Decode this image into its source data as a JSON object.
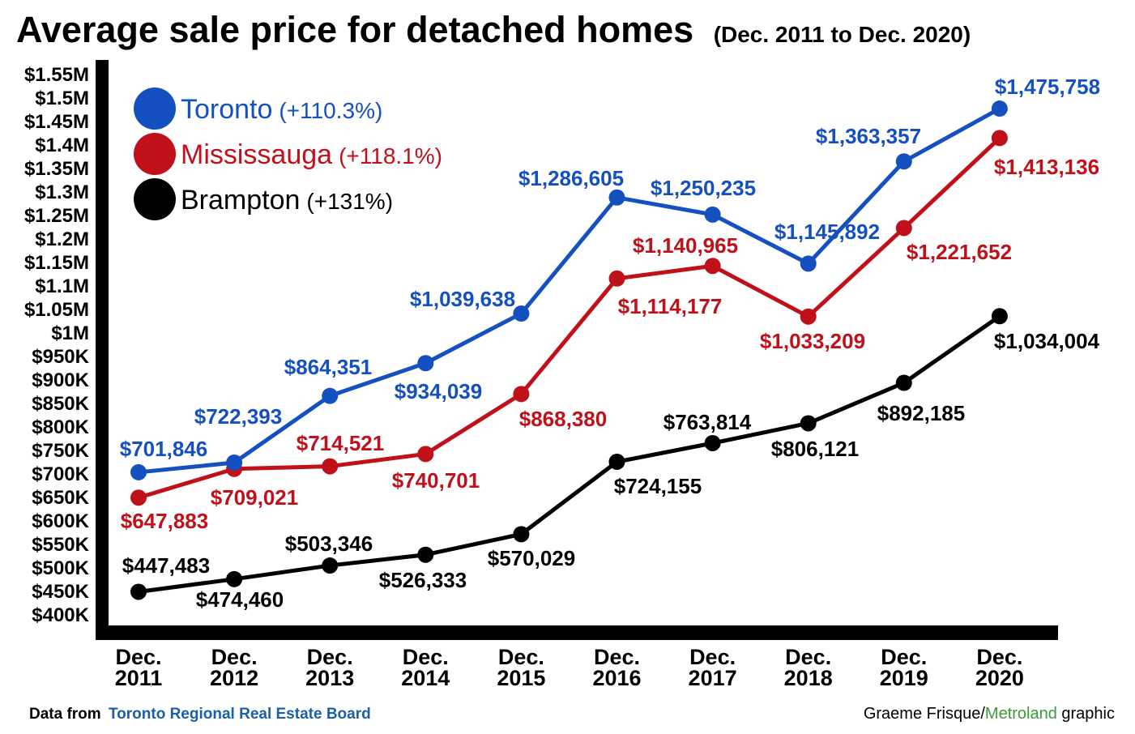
{
  "chart_data": {
    "type": "line",
    "title": "Average sale price for detached homes",
    "subtitle": "(Dec. 2011 to Dec. 2020)",
    "x_labels": [
      [
        "Dec.",
        "2011"
      ],
      [
        "Dec.",
        "2012"
      ],
      [
        "Dec.",
        "2013"
      ],
      [
        "Dec.",
        "2014"
      ],
      [
        "Dec.",
        "2015"
      ],
      [
        "Dec.",
        "2016"
      ],
      [
        "Dec.",
        "2017"
      ],
      [
        "Dec.",
        "2018"
      ],
      [
        "Dec.",
        "2019"
      ],
      [
        "Dec.",
        "2020"
      ]
    ],
    "y_ticks": [
      "$400K",
      "$450K",
      "$500K",
      "$550K",
      "$600K",
      "$650K",
      "$700K",
      "$750K",
      "$800K",
      "$850K",
      "$900K",
      "$950K",
      "$1M",
      "$1.05M",
      "$1.1M",
      "$1.15M",
      "$1.2M",
      "$1.25M",
      "$1.3M",
      "$1.35M",
      "$1.4M",
      "$1.45M",
      "$1.5M",
      "$1.55M"
    ],
    "ylim": [
      400000,
      1550000
    ],
    "grid": false,
    "legend_position": "top-left",
    "series": [
      {
        "name": "Toronto",
        "change": "(+110.3%)",
        "color": "#1450bf",
        "values": [
          701846,
          722393,
          864351,
          934039,
          1039638,
          1286605,
          1250235,
          1145892,
          1363357,
          1475758
        ],
        "labels": [
          "$701,846",
          "$722,393",
          "$864,351",
          "$934,039",
          "$1,039,638",
          "$1,286,605",
          "$1,250,235",
          "$1,145,892",
          "$1,363,357",
          "$1,475,758"
        ]
      },
      {
        "name": "Mississauga",
        "change": "(+118.1%)",
        "color": "#c0111b",
        "values": [
          647883,
          709021,
          714521,
          740701,
          868380,
          1114177,
          1140965,
          1033209,
          1221652,
          1413136
        ],
        "labels": [
          "$647,883",
          "$709,021",
          "$714,521",
          "$740,701",
          "$868,380",
          "$1,114,177",
          "$1,140,965",
          "$1,033,209",
          "$1,221,652",
          "$1,413,136"
        ]
      },
      {
        "name": "Brampton",
        "change": "(+131%)",
        "color": "#000000",
        "values": [
          447483,
          474460,
          503346,
          526333,
          570029,
          724155,
          763814,
          806121,
          892185,
          1034004
        ],
        "labels": [
          "$447,483",
          "$474,460",
          "$503,346",
          "$526,333",
          "$570,029",
          "$724,155",
          "$763,814",
          "$806,121",
          "$892,185",
          "$1,034,004"
        ]
      }
    ]
  },
  "footer": {
    "source_prefix": "Data from",
    "source_name": "Toronto Regional Real Estate Board",
    "source_color": "#1a5fa8",
    "credit_name": "Graeme Frisque/",
    "credit_org": "Metroland",
    "credit_suffix": " graphic",
    "credit_org_color": "#3a9a3a"
  }
}
